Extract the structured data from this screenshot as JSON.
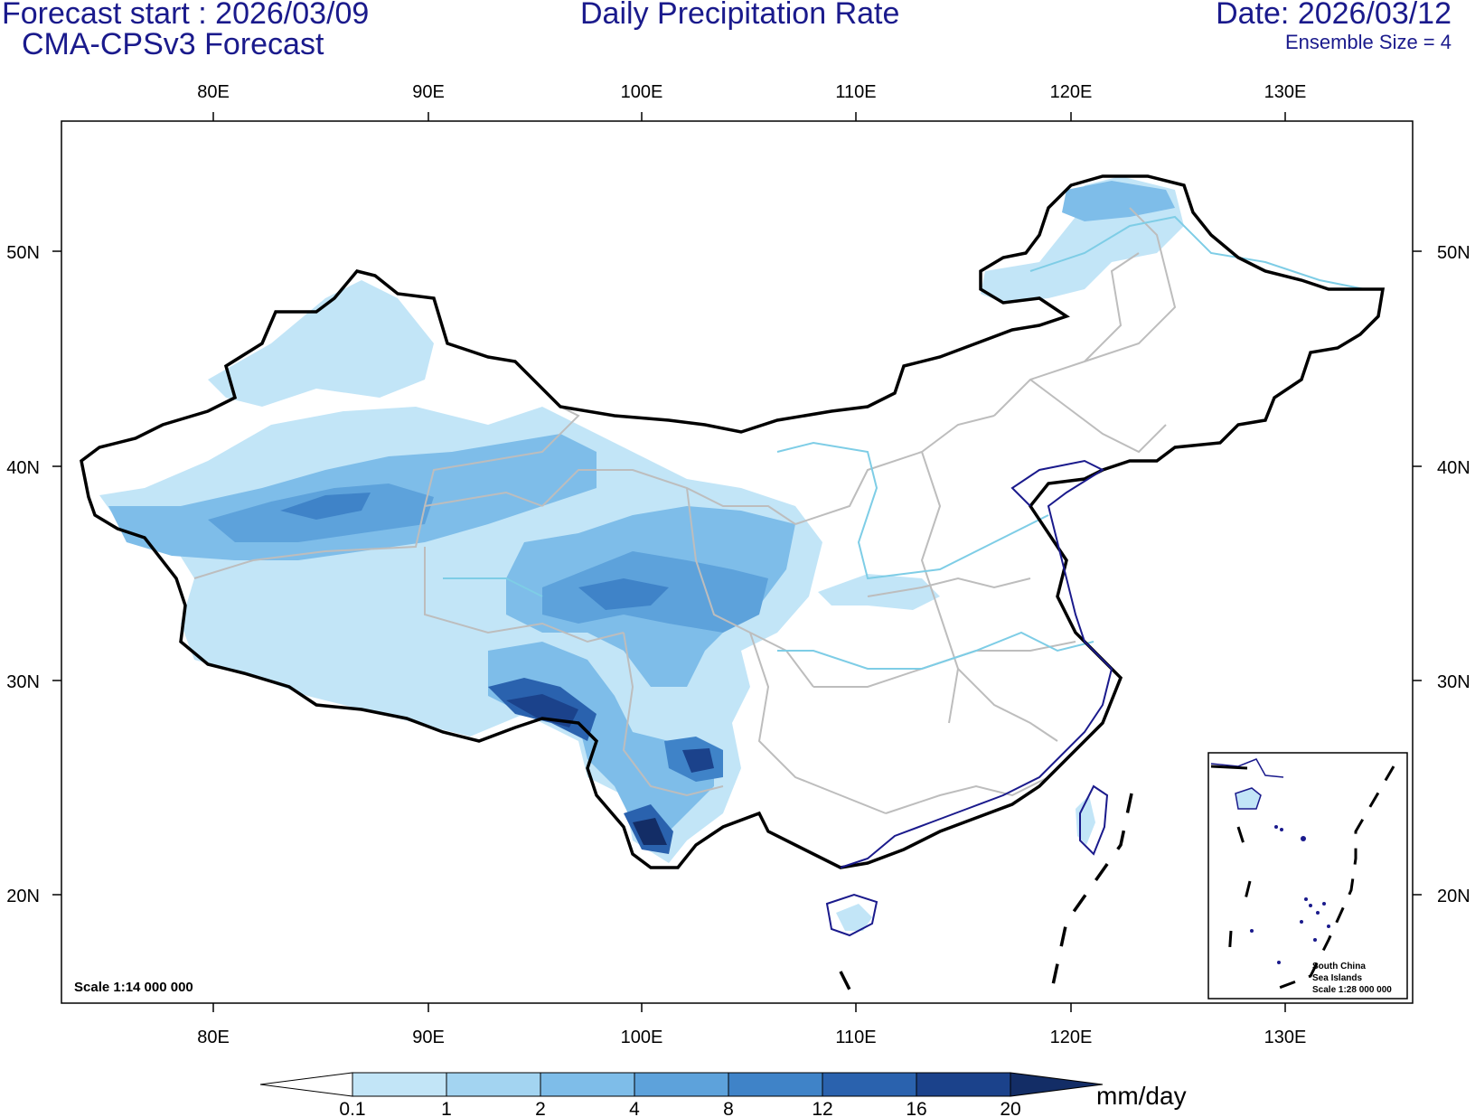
{
  "header": {
    "forecast_start": "Forecast start : 2026/03/09",
    "model": "CMA-CPSv3 Forecast",
    "title": "Daily Precipitation Rate",
    "date": "Date: 2026/03/12",
    "ensemble": "Ensemble Size = 4"
  },
  "map": {
    "lon_labels": [
      "80E",
      "90E",
      "100E",
      "110E",
      "120E",
      "130E"
    ],
    "lat_labels": [
      "50N",
      "40N",
      "30N",
      "20N"
    ],
    "scale_main": "Scale 1:14 000 000",
    "inset": {
      "line1": "South China",
      "line2": "Sea Islands",
      "line3": "Scale 1:28 000 000"
    }
  },
  "colorbar": {
    "levels": [
      "0.1",
      "1",
      "2",
      "4",
      "8",
      "12",
      "16",
      "20"
    ],
    "colors": [
      "#ffffff",
      "#c2e5f7",
      "#a3d4f1",
      "#7ebde9",
      "#5da2db",
      "#3f83c8",
      "#2a62ae",
      "#1b428b",
      "#132d66"
    ],
    "unit": "mm/day"
  }
}
